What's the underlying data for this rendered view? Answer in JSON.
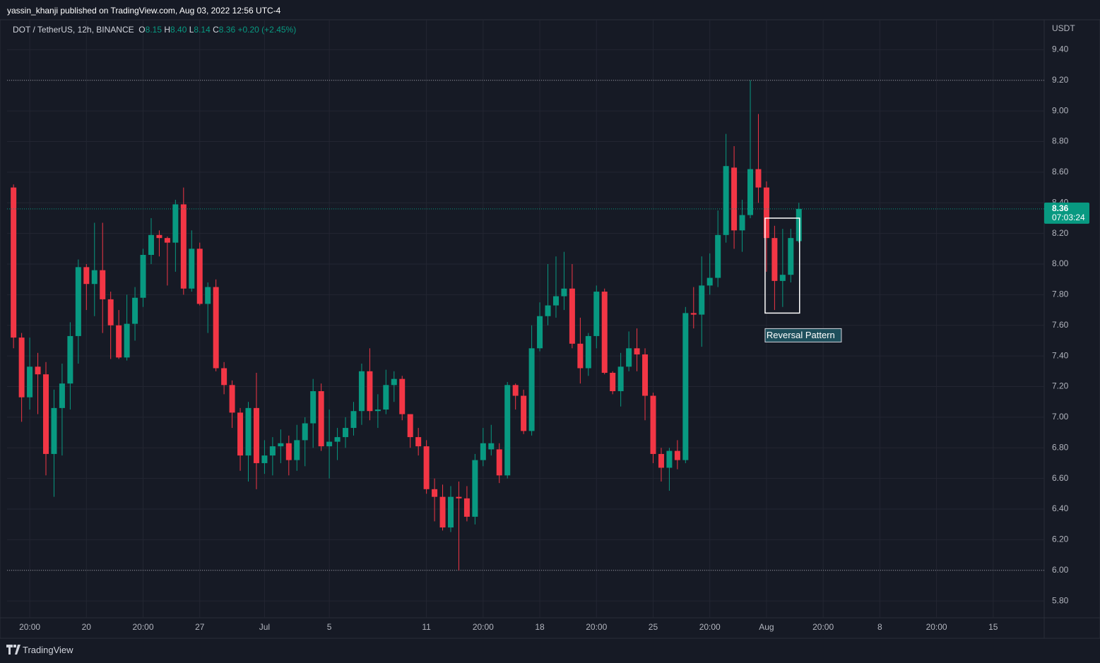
{
  "header": {
    "publisher": "yassin_khanji published on TradingView.com, Aug 03, 2022 12:56 UTC-4",
    "logo": "TradingView"
  },
  "chart_data": {
    "type": "candlestick",
    "symbol": "DOT / TetherUS, 12h, BINANCE",
    "ohlc_legend": {
      "o_label": "O",
      "open": 8.15,
      "h_label": "H",
      "high": 8.4,
      "l_label": "L",
      "low": 8.14,
      "c_label": "C",
      "close": 8.36,
      "change": "+0.20 (+2.45%)"
    },
    "axis_unit": "USDT",
    "last_price": 8.36,
    "countdown": "07:03:24",
    "up_color": "#089981",
    "down_color": "#f23645",
    "open": [
      8.5,
      7.52,
      7.13,
      7.33,
      7.28,
      6.76,
      7.06,
      7.22,
      7.53,
      7.98,
      7.87,
      7.96,
      7.77,
      7.6,
      7.39,
      7.61,
      7.78,
      8.06,
      8.19,
      8.17,
      8.14,
      8.39,
      7.84,
      8.1,
      7.74,
      7.85,
      7.32,
      7.21,
      7.03,
      6.75,
      7.06,
      6.7,
      6.75,
      6.81,
      6.83,
      6.72,
      6.85,
      6.96,
      7.17,
      6.81,
      6.84,
      6.87,
      6.93,
      7.04,
      7.3,
      7.04,
      7.05,
      7.21,
      7.25,
      7.02,
      6.87,
      6.81,
      6.53,
      6.48,
      6.28,
      6.48,
      6.47,
      6.35,
      6.72,
      6.79,
      6.79,
      6.62,
      7.21,
      7.14,
      6.91,
      7.45,
      7.66,
      7.73,
      7.79,
      7.84,
      7.48,
      7.32,
      7.53,
      7.82,
      7.29,
      7.17,
      7.33,
      7.45,
      7.41,
      7.14,
      6.76,
      6.67,
      6.78,
      6.72,
      7.68,
      7.67,
      7.86,
      7.91,
      8.19,
      8.63,
      8.22,
      8.32,
      8.62,
      8.5,
      8.17,
      7.89,
      7.93,
      8.15
    ],
    "high": [
      8.52,
      7.55,
      7.52,
      7.42,
      7.36,
      7.18,
      7.35,
      7.62,
      8.03,
      8.0,
      8.27,
      8.27,
      7.82,
      7.7,
      7.8,
      7.85,
      8.1,
      8.3,
      8.22,
      8.18,
      8.42,
      8.5,
      8.22,
      8.14,
      7.88,
      7.9,
      7.36,
      7.24,
      7.06,
      7.1,
      7.29,
      6.85,
      6.87,
      6.92,
      6.88,
      6.95,
      7.0,
      7.25,
      7.22,
      7.05,
      6.93,
      7.0,
      7.1,
      7.35,
      7.45,
      7.15,
      7.31,
      7.3,
      7.27,
      7.02,
      6.93,
      6.85,
      6.6,
      6.56,
      6.55,
      6.58,
      6.55,
      6.76,
      6.93,
      6.95,
      6.83,
      7.23,
      7.22,
      7.18,
      7.6,
      7.75,
      8.0,
      8.05,
      8.08,
      8.0,
      7.65,
      7.55,
      7.86,
      7.84,
      7.3,
      7.42,
      7.56,
      7.58,
      7.45,
      7.16,
      6.8,
      6.8,
      6.85,
      7.72,
      7.85,
      8.05,
      8.07,
      8.35,
      8.85,
      8.77,
      8.42,
      9.2,
      8.98,
      8.54,
      8.25,
      8.23,
      8.23,
      8.4
    ],
    "low": [
      7.45,
      6.97,
      7.05,
      7.02,
      6.62,
      6.48,
      6.75,
      7.05,
      7.35,
      7.7,
      7.66,
      7.55,
      7.38,
      7.38,
      7.37,
      7.5,
      7.72,
      8.0,
      8.05,
      7.86,
      7.95,
      7.8,
      7.82,
      7.73,
      7.55,
      7.3,
      7.15,
      6.93,
      6.65,
      6.58,
      6.53,
      6.63,
      6.62,
      6.7,
      6.62,
      6.65,
      6.68,
      6.8,
      6.78,
      6.6,
      6.72,
      6.8,
      6.88,
      6.95,
      6.98,
      6.93,
      7.02,
      7.1,
      6.98,
      6.8,
      6.75,
      6.5,
      6.32,
      6.26,
      6.25,
      6.0,
      6.32,
      6.3,
      6.68,
      6.75,
      6.57,
      6.6,
      7.05,
      6.89,
      6.88,
      7.43,
      7.6,
      7.65,
      7.7,
      7.45,
      7.22,
      7.27,
      7.45,
      7.28,
      7.15,
      7.07,
      7.3,
      7.3,
      6.98,
      6.7,
      6.58,
      6.52,
      6.66,
      6.7,
      7.58,
      7.46,
      7.8,
      7.85,
      8.14,
      8.1,
      8.08,
      8.3,
      8.4,
      7.95,
      7.7,
      7.72,
      7.88,
      8.14
    ],
    "close": [
      7.52,
      7.13,
      7.33,
      7.28,
      6.76,
      7.06,
      7.22,
      7.53,
      7.98,
      7.87,
      7.96,
      7.77,
      7.6,
      7.39,
      7.61,
      7.78,
      8.06,
      8.19,
      8.17,
      8.14,
      8.39,
      7.84,
      8.1,
      7.74,
      7.85,
      7.32,
      7.21,
      7.03,
      6.75,
      7.06,
      6.7,
      6.75,
      6.81,
      6.83,
      6.72,
      6.85,
      6.96,
      7.17,
      6.81,
      6.84,
      6.87,
      6.93,
      7.04,
      7.3,
      7.04,
      7.05,
      7.21,
      7.25,
      7.02,
      6.87,
      6.81,
      6.53,
      6.48,
      6.28,
      6.48,
      6.47,
      6.35,
      6.72,
      6.83,
      6.83,
      6.62,
      7.21,
      7.14,
      6.91,
      7.45,
      7.66,
      7.73,
      7.79,
      7.84,
      7.48,
      7.32,
      7.53,
      7.82,
      7.29,
      7.17,
      7.33,
      7.45,
      7.41,
      7.14,
      6.76,
      6.67,
      6.78,
      6.72,
      7.68,
      7.67,
      7.86,
      7.91,
      8.19,
      8.64,
      8.22,
      8.32,
      8.62,
      8.5,
      8.17,
      7.89,
      7.93,
      8.17,
      8.36
    ],
    "xlim": [
      -0.8,
      127.3
    ],
    "xticks": [
      {
        "value": 2,
        "label": "20:00"
      },
      {
        "value": 9,
        "label": "20"
      },
      {
        "value": 16,
        "label": "20:00"
      },
      {
        "value": 23,
        "label": "27"
      },
      {
        "value": 31,
        "label": "Jul"
      },
      {
        "value": 39,
        "label": "5"
      },
      {
        "value": 51,
        "label": "11"
      },
      {
        "value": 58,
        "label": "20:00"
      },
      {
        "value": 65,
        "label": "18"
      },
      {
        "value": 72,
        "label": "20:00"
      },
      {
        "value": 79,
        "label": "25"
      },
      {
        "value": 86,
        "label": "20:00"
      },
      {
        "value": 93,
        "label": "Aug"
      },
      {
        "value": 100,
        "label": "20:00"
      },
      {
        "value": 107,
        "label": "8"
      },
      {
        "value": 114,
        "label": "20:00"
      },
      {
        "value": 121,
        "label": "15"
      }
    ],
    "ylim": [
      5.69,
      9.6
    ],
    "yticks": [
      {
        "value": 5.8,
        "label": "5.80"
      },
      {
        "value": 6.0,
        "label": "6.00"
      },
      {
        "value": 6.2,
        "label": "6.20"
      },
      {
        "value": 6.4,
        "label": "6.40"
      },
      {
        "value": 6.6,
        "label": "6.60"
      },
      {
        "value": 6.8,
        "label": "6.80"
      },
      {
        "value": 7.0,
        "label": "7.00"
      },
      {
        "value": 7.2,
        "label": "7.20"
      },
      {
        "value": 7.4,
        "label": "7.40"
      },
      {
        "value": 7.6,
        "label": "7.60"
      },
      {
        "value": 7.8,
        "label": "7.80"
      },
      {
        "value": 8.0,
        "label": "8.00"
      },
      {
        "value": 8.2,
        "label": "8.20"
      },
      {
        "value": 8.4,
        "label": "8.40"
      },
      {
        "value": 8.6,
        "label": "8.60"
      },
      {
        "value": 8.8,
        "label": "8.80"
      },
      {
        "value": 9.0,
        "label": "9.00"
      },
      {
        "value": 9.2,
        "label": "9.20"
      },
      {
        "value": 9.4,
        "label": "9.40"
      }
    ],
    "grid": true,
    "levels": [
      9.2,
      6.0
    ],
    "annotation": {
      "text": "Reversal Pattern",
      "from": 93,
      "to": 97,
      "high": 8.3,
      "low": 7.68
    }
  }
}
